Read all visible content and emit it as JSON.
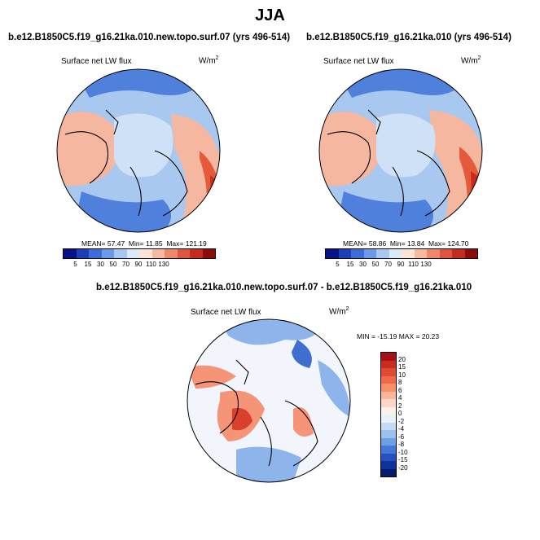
{
  "title": "JJA",
  "panels": [
    {
      "title": "b.e12.B1850C5.f19_g16.21ka.010.new.topo.surf.07 (yrs 496-514)",
      "variable": "Surface net LW flux",
      "units": "W/m",
      "units_exp": "2",
      "stats": {
        "mean": "57.47",
        "min": "11.85",
        "max": "121.19"
      }
    },
    {
      "title": "b.e12.B1850C5.f19_g16.21ka.010 (yrs 496-514)",
      "variable": "Surface net LW flux",
      "units": "W/m",
      "units_exp": "2",
      "stats": {
        "mean": "58.86",
        "min": "13.84",
        "max": "124.70"
      }
    },
    {
      "title": "b.e12.B1850C5.f19_g16.21ka.010.new.topo.surf.07 - b.e12.B1850C5.f19_g16.21ka.010",
      "variable": "Surface net LW flux",
      "units": "W/m",
      "units_exp": "2",
      "stats_text": "MIN = -15.19  MAX =  20.23"
    }
  ],
  "stat_labels": {
    "mean": "MEAN=",
    "min": "Min=",
    "max": "Max="
  },
  "colorbar_abs": {
    "labels": [
      "5",
      "15",
      "30",
      "50",
      "70",
      "90",
      "110",
      "130"
    ],
    "colors": [
      "#08108a",
      "#1b3fb8",
      "#3d6dd8",
      "#6a9ae8",
      "#a6c8f2",
      "#d9eaf9",
      "#fbe4d6",
      "#f7b9a0",
      "#ef8868",
      "#e0553d",
      "#c52a1e",
      "#8c0b0b"
    ]
  },
  "colorbar_diff": {
    "labels": [
      "20",
      "15",
      "10",
      "8",
      "6",
      "4",
      "2",
      "0",
      "-2",
      "-4",
      "-6",
      "-8",
      "-10",
      "-15",
      "-20"
    ],
    "colors": [
      "#a50f15",
      "#cb2a20",
      "#e04a2f",
      "#ef6b47",
      "#f78f6a",
      "#fbb69a",
      "#fcd7c6",
      "#fdf2ea",
      "#e9f2fb",
      "#c4daf5",
      "#9cc1ee",
      "#6f9fe3",
      "#4478d6",
      "#2452c0",
      "#103399",
      "#061a6e"
    ]
  },
  "map_colors": {
    "abs": {
      "pole": "#cfe1f6",
      "mid": "#a8c8f0",
      "warm": "#f6b7a0",
      "hot": "#e65a3c",
      "cold": "#4f80dc",
      "veryhot": "#c62d1f"
    },
    "diff": {
      "base": "#f2f6fc",
      "blue": "#8db4eb",
      "deepblue": "#3f6fcf",
      "red": "#f59477",
      "deepred": "#d9412c"
    }
  }
}
